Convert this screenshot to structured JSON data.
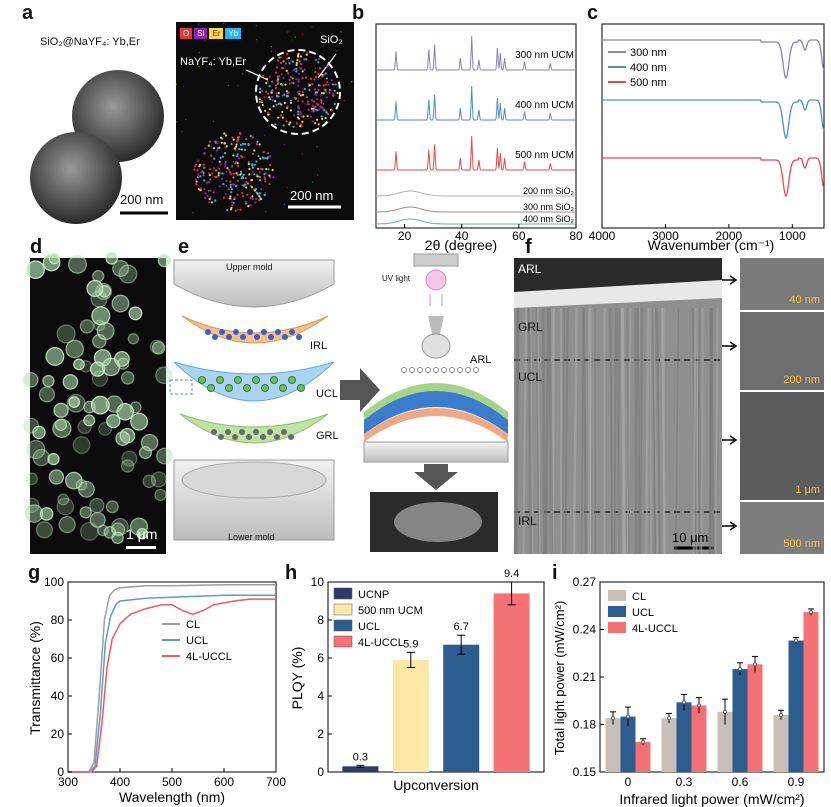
{
  "panel_labels": {
    "a": "a",
    "b": "b",
    "c": "c",
    "d": "d",
    "e": "e",
    "f": "f",
    "g": "g",
    "h": "h",
    "i": "i"
  },
  "panel_a": {
    "tem_label": "SiO₂@NaYF₄: Yb,Er",
    "scale_tem": "200 nm",
    "scale_map": "200 nm",
    "map_label_shell": "NaYF₄: Yb,Er",
    "map_label_core": "SiO₂",
    "elements": [
      {
        "symbol": "O",
        "color": "#e53935"
      },
      {
        "symbol": "Si",
        "color": "#8e24aa"
      },
      {
        "symbol": "Er",
        "color": "#fdd835"
      },
      {
        "symbol": "Yb",
        "color": "#29b6f6"
      }
    ]
  },
  "panel_d": {
    "scale": "1 μm"
  },
  "panel_e": {
    "upper_mold": "Upper mold",
    "lower_mold": "Lower mold",
    "irl": "IRL",
    "ucl": "UCL",
    "grl": "GRL",
    "arl": "ARL",
    "uv_light": "UV light"
  },
  "panel_f": {
    "layers": [
      "ARL",
      "GRL",
      "UCL",
      "IRL"
    ],
    "scale_main": "10 μm",
    "insets": [
      "40 nm",
      "200 nm",
      "1 μm",
      "500 nm"
    ]
  },
  "chart_data": [
    {
      "id": "b",
      "type": "line",
      "title": "",
      "xlabel": "2θ (degree)",
      "ylabel": "",
      "xlim": [
        10,
        80
      ],
      "xticks": [
        20,
        40,
        60,
        80
      ],
      "series": [
        {
          "name": "300 nm UCM",
          "color": "#8c7fbf"
        },
        {
          "name": "400 nm UCM",
          "color": "#4a8fd0"
        },
        {
          "name": "500 nm UCM",
          "color": "#e64a4a"
        },
        {
          "name": "200 nm SiO₂",
          "color": "#b9aea8"
        },
        {
          "name": "300 nm SiO₂",
          "color": "#a58c80"
        },
        {
          "name": "400 nm SiO₂",
          "color": "#5fb29c"
        }
      ],
      "peaks_deg": [
        17,
        28.5,
        30.5,
        39.5,
        43.5,
        46,
        52.5,
        53.5,
        55,
        62,
        71
      ]
    },
    {
      "id": "c",
      "type": "line",
      "title": "",
      "xlabel": "Wavenumber (cm⁻¹)",
      "ylabel": "",
      "xlim": [
        4000,
        500
      ],
      "xticks": [
        4000,
        3000,
        2000,
        1000
      ],
      "series": [
        {
          "name": "300 nm",
          "color": "#8c7fbf"
        },
        {
          "name": "400 nm",
          "color": "#4a8fd0"
        },
        {
          "name": "500 nm",
          "color": "#e64a4a"
        }
      ],
      "bands_cm": [
        1100,
        800,
        470
      ]
    },
    {
      "id": "g",
      "type": "line",
      "title": "",
      "xlabel": "Wavelength (nm)",
      "ylabel": "Transmittance (%)",
      "xlim": [
        300,
        700
      ],
      "ylim": [
        0,
        100
      ],
      "xticks": [
        300,
        400,
        500,
        600,
        700
      ],
      "yticks": [
        0,
        20,
        40,
        60,
        80,
        100
      ],
      "series": [
        {
          "name": "CL",
          "color": "#9e9e9e",
          "x": [
            300,
            340,
            350,
            360,
            370,
            380,
            390,
            400,
            450,
            500,
            600,
            700
          ],
          "y": [
            0,
            0,
            5,
            40,
            80,
            93,
            96,
            97,
            98,
            98,
            98.5,
            98.5
          ]
        },
        {
          "name": "UCL",
          "color": "#5b9bd5",
          "x": [
            300,
            340,
            352,
            362,
            372,
            382,
            392,
            400,
            450,
            500,
            600,
            700
          ],
          "y": [
            0,
            0,
            3,
            30,
            68,
            82,
            88,
            90,
            91.5,
            92,
            93,
            93
          ]
        },
        {
          "name": "4L-UCCL",
          "color": "#f05a5a",
          "x": [
            300,
            345,
            355,
            365,
            375,
            385,
            400,
            420,
            450,
            480,
            500,
            520,
            540,
            560,
            580,
            600,
            620,
            650,
            700
          ],
          "y": [
            0,
            0,
            3,
            25,
            55,
            70,
            78,
            83,
            86,
            88,
            88,
            85,
            83,
            85,
            88,
            89,
            90,
            91,
            91
          ]
        }
      ]
    },
    {
      "id": "h",
      "type": "bar",
      "title": "",
      "xlabel": "Upconversion",
      "ylabel": "PLQY (%)",
      "ylim": [
        0,
        10
      ],
      "yticks": [
        0,
        2,
        4,
        6,
        8,
        10
      ],
      "categories": [
        "UCNP",
        "500 nm UCM",
        "UCL",
        "4L-UCCL"
      ],
      "values": [
        0.3,
        5.9,
        6.7,
        9.4
      ],
      "errors": [
        0.05,
        0.4,
        0.5,
        0.6
      ],
      "colors": [
        "#2e3a6e",
        "#fbe8a6",
        "#2d5d8f",
        "#f47174"
      ],
      "value_labels": [
        "0.3",
        "5.9",
        "6.7",
        "9.4"
      ],
      "legend": [
        "UCNP",
        "500 nm UCM",
        "UCL",
        "4L-UCCL"
      ]
    },
    {
      "id": "i",
      "type": "bar",
      "title": "",
      "xlabel": "Infrared light power (mW/cm²)",
      "ylabel": "Total light power (mW/cm²)",
      "ylim": [
        0.15,
        0.27
      ],
      "yticks": [
        0.15,
        0.18,
        0.21,
        0.24,
        0.27
      ],
      "categories": [
        "0",
        "0.3",
        "0.6",
        "0.9"
      ],
      "series": [
        {
          "name": "CL",
          "color": "#c8bfb8",
          "values": [
            0.184,
            0.184,
            0.188,
            0.186
          ],
          "errors": [
            0.004,
            0.003,
            0.008,
            0.003
          ]
        },
        {
          "name": "UCL",
          "color": "#2d5d8f",
          "values": [
            0.185,
            0.194,
            0.215,
            0.233
          ],
          "errors": [
            0.006,
            0.005,
            0.004,
            0.002
          ]
        },
        {
          "name": "4L-UCCL",
          "color": "#f47174",
          "values": [
            0.169,
            0.192,
            0.218,
            0.251
          ],
          "errors": [
            0.002,
            0.005,
            0.005,
            0.002
          ]
        }
      ]
    }
  ]
}
